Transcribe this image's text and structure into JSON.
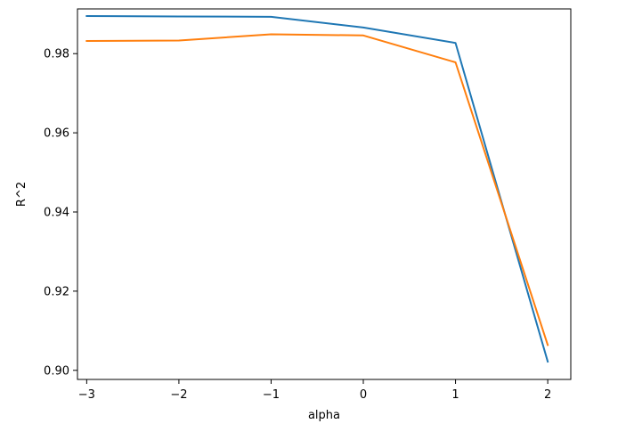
{
  "chart_data": {
    "type": "line",
    "title": "",
    "xlabel": "alpha",
    "ylabel": "R^2",
    "x": [
      -3,
      -2,
      -1,
      0,
      1,
      2
    ],
    "xticks": [
      -3,
      -2,
      -1,
      0,
      1,
      2
    ],
    "xtick_labels": [
      "−3",
      "−2",
      "−1",
      "0",
      "1",
      "2"
    ],
    "yticks": [
      0.9,
      0.92,
      0.94,
      0.96,
      0.98
    ],
    "ytick_labels": [
      "0.90",
      "0.92",
      "0.94",
      "0.96",
      "0.98"
    ],
    "xlim": [
      -3.1,
      2.25
    ],
    "ylim": [
      0.8977,
      0.9913
    ],
    "grid": false,
    "legend": "none",
    "series": [
      {
        "color": "#1f77b4",
        "values": [
          0.9895,
          0.9894,
          0.9893,
          0.9866,
          0.9827,
          0.9022
        ]
      },
      {
        "color": "#ff7f0e",
        "values": [
          0.9832,
          0.9833,
          0.9849,
          0.9846,
          0.9778,
          0.9064
        ]
      }
    ]
  }
}
